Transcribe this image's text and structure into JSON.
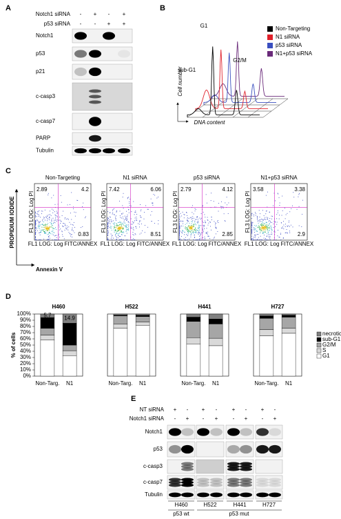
{
  "panel_labels": [
    "A",
    "B",
    "C",
    "D",
    "E"
  ],
  "panel_a": {
    "treatments": [
      {
        "name": "Notch1 siRNA",
        "signs": [
          "-",
          "+",
          "-",
          "+"
        ]
      },
      {
        "name": "p53 siRNA",
        "signs": [
          "-",
          "-",
          "+",
          "+"
        ]
      }
    ],
    "proteins": [
      "Notch1",
      "p53",
      "p21",
      "c-casp3",
      "c-casp7",
      "PARP",
      "Tubulin"
    ]
  },
  "panel_b": {
    "legend": [
      {
        "name": "Non-Targeting",
        "color": "#000000"
      },
      {
        "name": "N1 siRNA",
        "color": "#e0202a"
      },
      {
        "name": "p53 siRNA",
        "color": "#3a4fc0"
      },
      {
        "name": "N1+p53 siRNA",
        "color": "#6a2a7a"
      }
    ],
    "peak_labels": [
      "G1",
      "sub-G1",
      "G2/M"
    ],
    "ylabel": "Cell number",
    "xlabel": "DNA content"
  },
  "panel_c": {
    "ylabel": "PROPIDIUM IODIDE",
    "xlabel": "Annexin V",
    "plot_xlabel": "FL1 LOG: Log FITC/ANNEX",
    "plot_ylabel": "FL3 LOG: Log PI",
    "plots": [
      {
        "title": "Non-Targeting",
        "upper_left": 2.89,
        "upper_right": 4.2,
        "lower_right": 0.83
      },
      {
        "title": "N1 siRNA",
        "upper_left": 7.42,
        "upper_right": 6.06,
        "lower_right": 8.51
      },
      {
        "title": "p53 siRNA",
        "upper_left": 2.79,
        "upper_right": 4.12,
        "lower_right": 2.85
      },
      {
        "title": "N1+p53 siRNA",
        "upper_left": 3.58,
        "upper_right": 3.38,
        "lower_right": 2.9
      }
    ]
  },
  "panel_e": {
    "treatments": [
      {
        "name": "NT siRNA",
        "signs": [
          "+",
          "-",
          "+",
          "-",
          "+",
          "-",
          "+",
          "-"
        ]
      },
      {
        "name": "Notch1 siRNA",
        "signs": [
          "-",
          "+",
          "-",
          "+",
          "-",
          "+",
          "-",
          "+"
        ]
      }
    ],
    "proteins": [
      "Notch1",
      "p53",
      "c-casp3",
      "c-casp7",
      "Tubulin"
    ],
    "cell_lines": [
      "H460",
      "H522",
      "H441",
      "H727"
    ],
    "p53_status": [
      "p53 wt",
      "p53 mut"
    ]
  },
  "chart_data": [
    {
      "type": "stacked_bar",
      "title": "H460",
      "ylabel": "% of cells",
      "categories": [
        "Non-Targ.",
        "N1"
      ],
      "series": [
        {
          "name": "G1",
          "color": "#ffffff",
          "values": [
            58,
            33
          ]
        },
        {
          "name": "S",
          "color": "#d9d9d9",
          "values": [
            8,
            8
          ]
        },
        {
          "name": "G2/M",
          "color": "#a6a6a6",
          "values": [
            11,
            9
          ]
        },
        {
          "name": "sub-G1",
          "color": "#000000",
          "values": [
            17.3,
            35.2
          ],
          "labeled": true
        },
        {
          "name": "necrotic",
          "color": "#808080",
          "values": [
            5.7,
            14.9
          ],
          "labeled": true
        }
      ],
      "ylim": [
        0,
        100
      ],
      "yticks": [
        {
          "value": 0,
          "label": "0%"
        },
        {
          "value": 10,
          "label": "10%"
        },
        {
          "value": 20,
          "label": "20%"
        },
        {
          "value": 30,
          "label": "30%"
        },
        {
          "value": 40,
          "label": "40%"
        },
        {
          "value": 50,
          "label": "50%"
        },
        {
          "value": 60,
          "label": "60%"
        },
        {
          "value": 70,
          "label": "70%"
        },
        {
          "value": 80,
          "label": "80%"
        },
        {
          "value": 90,
          "label": "90%"
        },
        {
          "value": 100,
          "label": "100%"
        }
      ]
    },
    {
      "type": "stacked_bar",
      "title": "H522",
      "categories": [
        "Non-Targ.",
        "N1"
      ],
      "series": [
        {
          "name": "G1",
          "color": "#ffffff",
          "values": [
            77,
            82
          ]
        },
        {
          "name": "S",
          "color": "#d9d9d9",
          "values": [
            7,
            5
          ]
        },
        {
          "name": "G2/M",
          "color": "#a6a6a6",
          "values": [
            13,
            9
          ]
        },
        {
          "name": "sub-G1",
          "color": "#000000",
          "values": [
            1,
            2
          ]
        },
        {
          "name": "necrotic",
          "color": "#808080",
          "values": [
            2,
            2
          ]
        }
      ],
      "ylim": [
        0,
        100
      ]
    },
    {
      "type": "stacked_bar",
      "title": "H441",
      "categories": [
        "Non-Targ.",
        "N1"
      ],
      "series": [
        {
          "name": "G1",
          "color": "#ffffff",
          "values": [
            52,
            49
          ]
        },
        {
          "name": "S",
          "color": "#d9d9d9",
          "values": [
            10,
            12
          ]
        },
        {
          "name": "G2/M",
          "color": "#a6a6a6",
          "values": [
            26,
            23
          ]
        },
        {
          "name": "sub-G1",
          "color": "#000000",
          "values": [
            7,
            8
          ]
        },
        {
          "name": "necrotic",
          "color": "#808080",
          "values": [
            5,
            8
          ]
        }
      ],
      "ylim": [
        0,
        100
      ]
    },
    {
      "type": "stacked_bar",
      "title": "H727",
      "categories": [
        "Non-Targ.",
        "N1"
      ],
      "series": [
        {
          "name": "G1",
          "color": "#ffffff",
          "values": [
            65,
            69
          ]
        },
        {
          "name": "S",
          "color": "#d9d9d9",
          "values": [
            10,
            8
          ]
        },
        {
          "name": "G2/M",
          "color": "#a6a6a6",
          "values": [
            18,
            18
          ]
        },
        {
          "name": "sub-G1",
          "color": "#000000",
          "values": [
            4,
            3
          ]
        },
        {
          "name": "necrotic",
          "color": "#808080",
          "values": [
            3,
            2
          ]
        }
      ],
      "ylim": [
        0,
        100
      ],
      "legend": "right"
    }
  ]
}
